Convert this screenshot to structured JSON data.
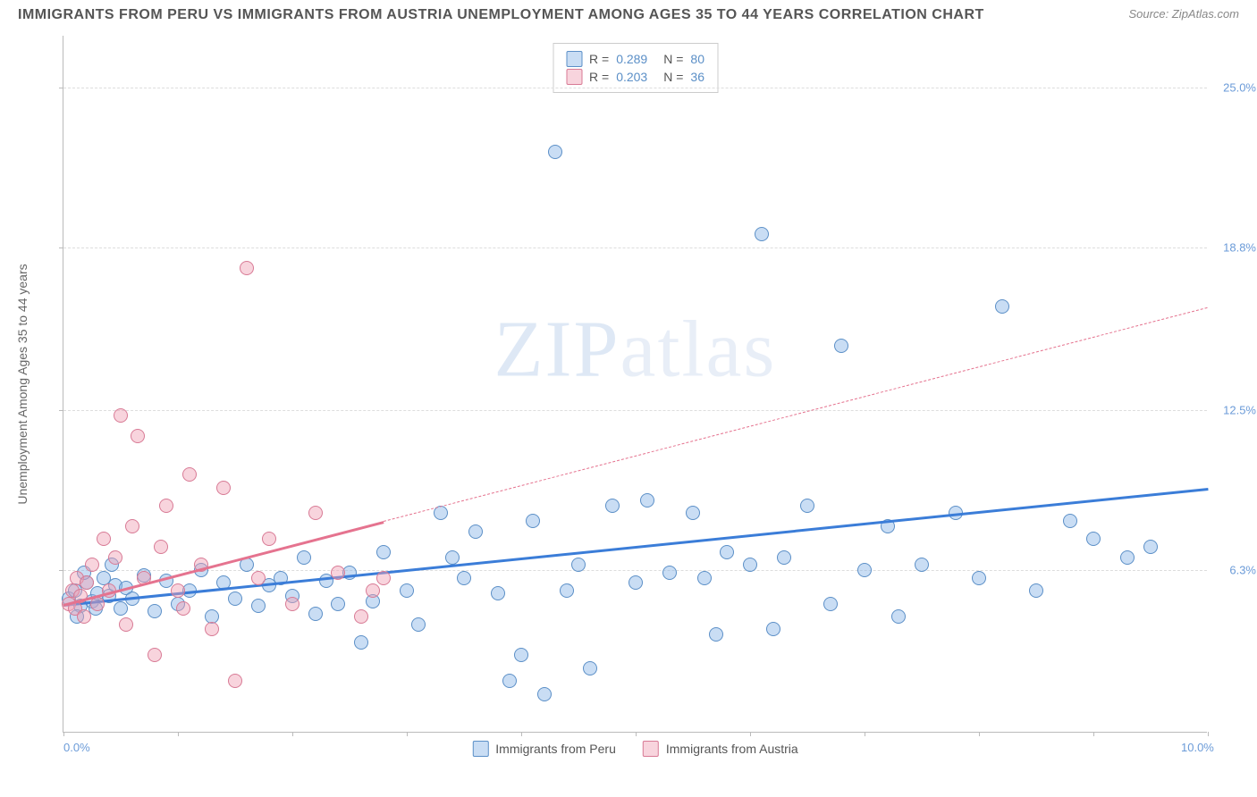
{
  "title": "IMMIGRANTS FROM PERU VS IMMIGRANTS FROM AUSTRIA UNEMPLOYMENT AMONG AGES 35 TO 44 YEARS CORRELATION CHART",
  "source": "Source: ZipAtlas.com",
  "y_axis_label": "Unemployment Among Ages 35 to 44 years",
  "watermark": {
    "bold": "ZIP",
    "thin": "atlas"
  },
  "chart": {
    "type": "scatter",
    "xlim": [
      0,
      10
    ],
    "ylim": [
      0,
      27
    ],
    "x_ticks": [
      0,
      1,
      2,
      3,
      4,
      5,
      6,
      7,
      8,
      9,
      10
    ],
    "x_tick_labels": {
      "0": "0.0%",
      "10": "10.0%"
    },
    "y_gridlines": [
      6.3,
      12.5,
      18.8,
      25.0
    ],
    "y_tick_labels": [
      "6.3%",
      "12.5%",
      "18.8%",
      "25.0%"
    ],
    "background_color": "#ffffff",
    "grid_color": "#dddddd",
    "axis_color": "#bbbbbb",
    "series": [
      {
        "name": "Immigrants from Peru",
        "color_fill": "rgba(135,180,230,0.45)",
        "color_stroke": "#5b8fc7",
        "trend_color": "#3b7dd8",
        "r": "0.289",
        "n": "80",
        "trend": {
          "x1": 0,
          "y1": 5.0,
          "x2": 10,
          "y2": 9.5,
          "solid_until_x": 10
        },
        "points": [
          [
            0.05,
            5.2
          ],
          [
            0.1,
            5.5
          ],
          [
            0.15,
            4.9
          ],
          [
            0.2,
            5.8
          ],
          [
            0.25,
            5.1
          ],
          [
            0.3,
            5.4
          ],
          [
            0.35,
            6.0
          ],
          [
            0.4,
            5.3
          ],
          [
            0.45,
            5.7
          ],
          [
            0.5,
            4.8
          ],
          [
            0.55,
            5.6
          ],
          [
            0.6,
            5.2
          ],
          [
            0.7,
            6.1
          ],
          [
            0.8,
            4.7
          ],
          [
            0.9,
            5.9
          ],
          [
            1.0,
            5.0
          ],
          [
            1.1,
            5.5
          ],
          [
            1.2,
            6.3
          ],
          [
            1.3,
            4.5
          ],
          [
            1.4,
            5.8
          ],
          [
            1.5,
            5.2
          ],
          [
            1.6,
            6.5
          ],
          [
            1.7,
            4.9
          ],
          [
            1.8,
            5.7
          ],
          [
            1.9,
            6.0
          ],
          [
            2.0,
            5.3
          ],
          [
            2.1,
            6.8
          ],
          [
            2.2,
            4.6
          ],
          [
            2.3,
            5.9
          ],
          [
            2.5,
            6.2
          ],
          [
            2.6,
            3.5
          ],
          [
            2.7,
            5.1
          ],
          [
            2.8,
            7.0
          ],
          [
            3.0,
            5.5
          ],
          [
            3.1,
            4.2
          ],
          [
            3.3,
            8.5
          ],
          [
            3.5,
            6.0
          ],
          [
            3.6,
            7.8
          ],
          [
            3.8,
            5.4
          ],
          [
            3.9,
            2.0
          ],
          [
            4.0,
            3.0
          ],
          [
            4.1,
            8.2
          ],
          [
            4.2,
            1.5
          ],
          [
            4.3,
            22.5
          ],
          [
            4.5,
            6.5
          ],
          [
            4.6,
            2.5
          ],
          [
            4.8,
            8.8
          ],
          [
            5.0,
            5.8
          ],
          [
            5.1,
            9.0
          ],
          [
            5.3,
            6.2
          ],
          [
            5.5,
            8.5
          ],
          [
            5.7,
            3.8
          ],
          [
            5.8,
            7.0
          ],
          [
            6.0,
            6.5
          ],
          [
            6.1,
            19.3
          ],
          [
            6.2,
            4.0
          ],
          [
            6.3,
            6.8
          ],
          [
            6.5,
            8.8
          ],
          [
            6.7,
            5.0
          ],
          [
            6.8,
            15.0
          ],
          [
            7.0,
            6.3
          ],
          [
            7.2,
            8.0
          ],
          [
            7.3,
            4.5
          ],
          [
            7.5,
            6.5
          ],
          [
            7.8,
            8.5
          ],
          [
            8.0,
            6.0
          ],
          [
            8.2,
            16.5
          ],
          [
            8.5,
            5.5
          ],
          [
            8.8,
            8.2
          ],
          [
            9.0,
            7.5
          ],
          [
            9.3,
            6.8
          ],
          [
            9.5,
            7.2
          ],
          [
            0.12,
            4.5
          ],
          [
            0.18,
            6.2
          ],
          [
            0.28,
            4.8
          ],
          [
            0.42,
            6.5
          ],
          [
            2.4,
            5.0
          ],
          [
            3.4,
            6.8
          ],
          [
            4.4,
            5.5
          ],
          [
            5.6,
            6.0
          ]
        ]
      },
      {
        "name": "Immigrants from Austria",
        "color_fill": "rgba(240,160,180,0.45)",
        "color_stroke": "#d87a95",
        "trend_color": "#e5738f",
        "r": "0.203",
        "n": "36",
        "trend": {
          "x1": 0,
          "y1": 5.0,
          "x2": 10,
          "y2": 16.5,
          "solid_until_x": 2.8
        },
        "points": [
          [
            0.05,
            5.0
          ],
          [
            0.08,
            5.5
          ],
          [
            0.1,
            4.8
          ],
          [
            0.12,
            6.0
          ],
          [
            0.15,
            5.3
          ],
          [
            0.18,
            4.5
          ],
          [
            0.2,
            5.8
          ],
          [
            0.25,
            6.5
          ],
          [
            0.3,
            5.0
          ],
          [
            0.35,
            7.5
          ],
          [
            0.4,
            5.5
          ],
          [
            0.45,
            6.8
          ],
          [
            0.5,
            12.3
          ],
          [
            0.55,
            4.2
          ],
          [
            0.6,
            8.0
          ],
          [
            0.65,
            11.5
          ],
          [
            0.7,
            6.0
          ],
          [
            0.8,
            3.0
          ],
          [
            0.85,
            7.2
          ],
          [
            0.9,
            8.8
          ],
          [
            1.0,
            5.5
          ],
          [
            1.1,
            10.0
          ],
          [
            1.2,
            6.5
          ],
          [
            1.3,
            4.0
          ],
          [
            1.4,
            9.5
          ],
          [
            1.5,
            2.0
          ],
          [
            1.6,
            18.0
          ],
          [
            1.7,
            6.0
          ],
          [
            1.8,
            7.5
          ],
          [
            2.0,
            5.0
          ],
          [
            2.2,
            8.5
          ],
          [
            2.4,
            6.2
          ],
          [
            2.6,
            4.5
          ],
          [
            2.7,
            5.5
          ],
          [
            2.8,
            6.0
          ],
          [
            1.05,
            4.8
          ]
        ]
      }
    ],
    "legend_labels": {
      "peru": "Immigrants from Peru",
      "austria": "Immigrants from Austria"
    },
    "stat_labels": {
      "r": "R =",
      "n": "N ="
    }
  }
}
